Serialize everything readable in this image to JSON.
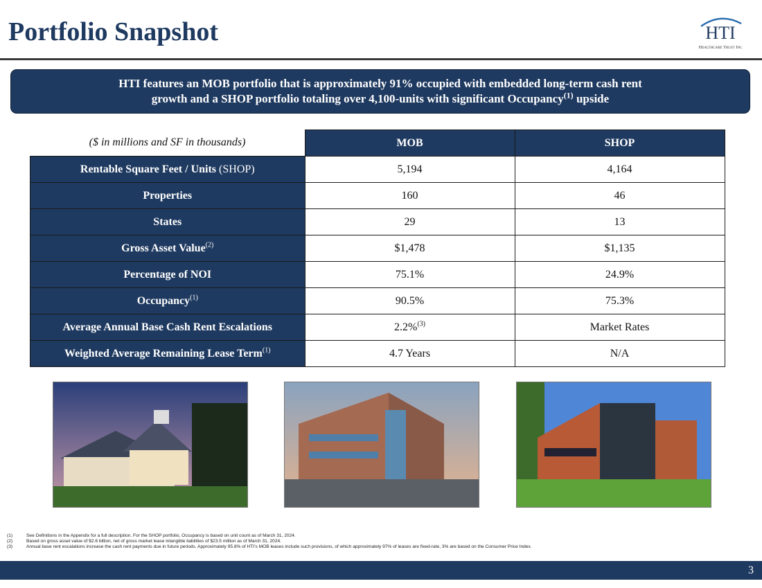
{
  "header": {
    "title": "Portfolio Snapshot",
    "logo": {
      "mark": "HTI",
      "name": "Healthcare Trust Inc"
    }
  },
  "banner": {
    "text": "HTI features an MOB portfolio that is approximately 91% occupied with embedded long-term cash rent growth and a SHOP portfolio totaling over 4,100-units with significant Occupancy",
    "sup": "(1)",
    "tail": "upside"
  },
  "table": {
    "caption": "($ in millions and SF in thousands)",
    "columns": [
      "MOB",
      "SHOP"
    ],
    "rows": [
      {
        "label": "Rentable Square Feet / Units",
        "note": "(SHOP)",
        "cells": [
          {
            "text": "5,194"
          },
          {
            "text": "4,164"
          }
        ]
      },
      {
        "label": "Properties",
        "cells": [
          {
            "text": "160"
          },
          {
            "text": "46"
          }
        ]
      },
      {
        "label": "States",
        "cells": [
          {
            "text": "29"
          },
          {
            "text": "13"
          }
        ]
      },
      {
        "label": "Gross Asset Value",
        "sup": "(2)",
        "cells": [
          {
            "text": "$1,478"
          },
          {
            "text": "$1,135"
          }
        ]
      },
      {
        "label": "Percentage of NOI",
        "cells": [
          {
            "text": "75.1%"
          },
          {
            "text": "24.9%"
          }
        ]
      },
      {
        "label": "Occupancy",
        "sup": "(1)",
        "cells": [
          {
            "text": "90.5%"
          },
          {
            "text": "75.3%"
          }
        ]
      },
      {
        "label": "Average Annual Base Cash Rent Escalations",
        "cells": [
          {
            "text": "2.2%",
            "sup": "(3)"
          },
          {
            "text": "Market Rates"
          }
        ]
      },
      {
        "label": "Weighted Average Remaining Lease Term",
        "sup": "(1)",
        "cells": [
          {
            "text": "4.7 Years"
          },
          {
            "text": "N/A"
          }
        ]
      }
    ]
  },
  "footnotes": [
    {
      "num": "(1)",
      "text": "See Definitions in the Appendix for a full description. For the SHOP portfolio, Occupancy is based on unit count as of March 31, 2024."
    },
    {
      "num": "(2)",
      "text": "Based on gross asset value of $2.6 billion, net of gross market lease intangible liabilities of $23.5 million as of March 31, 2024."
    },
    {
      "num": "(3)",
      "text": "Annual base rent escalations increase the cash rent payments due in future periods. Approximately 95.8% of HTI’s MOB leases include such provisions, of which approximately 97% of leases are fixed-rate, 3% are based on the Consumer Price Index."
    }
  ],
  "page_number": "3"
}
